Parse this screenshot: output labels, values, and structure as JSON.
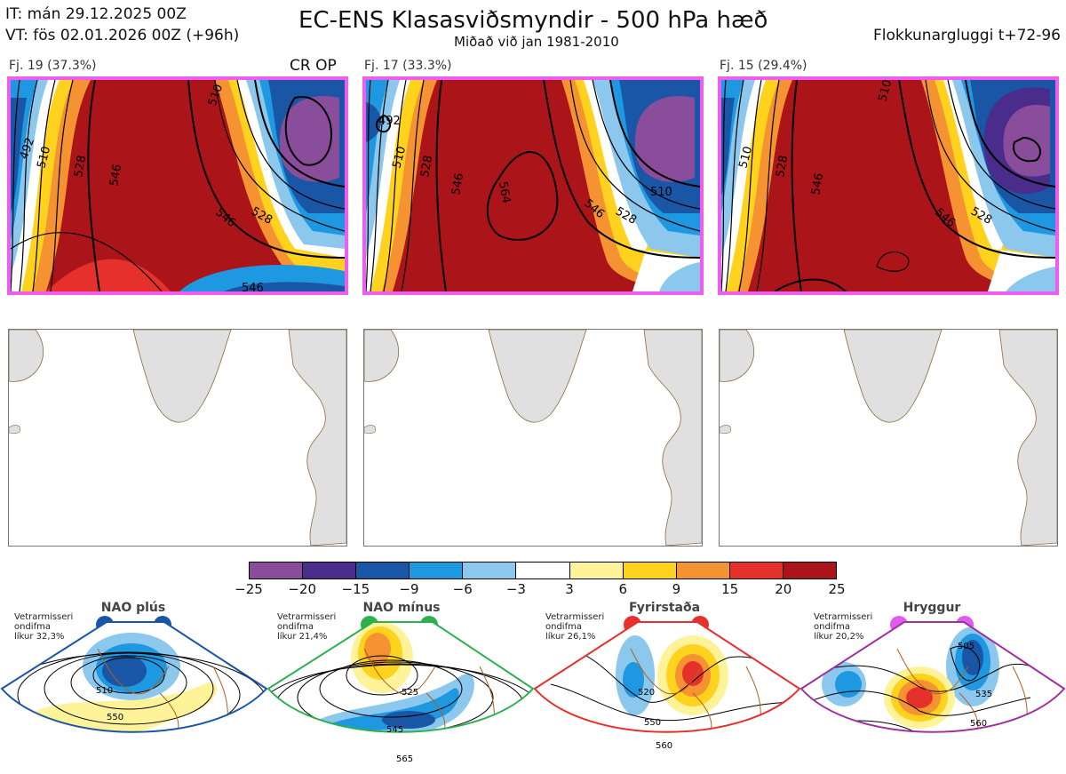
{
  "header": {
    "it_line": "IT: mán 29.12.2025 00Z",
    "vt_line": "VT: fös 02.01.2026 00Z  (+96h)",
    "title": "EC-ENS Klasasviðsmyndir - 500 hPa hæð",
    "subtitle": "Miðað við jan 1981-2010",
    "window": "Flokkunargluggi t+72-96"
  },
  "panels": [
    {
      "label": "Fj. 19 (37.3%)",
      "tag": "CR OP",
      "contours": [
        "492",
        "510",
        "528",
        "546",
        "546",
        "528",
        "510",
        "546"
      ]
    },
    {
      "label": "Fj. 17 (33.3%)",
      "tag": "",
      "contours": [
        "492",
        "510",
        "528",
        "546",
        "564",
        "546",
        "528",
        "510"
      ]
    },
    {
      "label": "Fj. 15 (29.4%)",
      "tag": "",
      "contours": [
        "510",
        "528",
        "546",
        "546",
        "528",
        "510"
      ]
    }
  ],
  "colorbar": {
    "ticks": [
      "−25",
      "−20",
      "−15",
      "−9",
      "−6",
      "−3",
      "3",
      "6",
      "9",
      "15",
      "20",
      "25"
    ],
    "colors": [
      "#8a4d9c",
      "#4a2c8c",
      "#1a56a6",
      "#1e98e0",
      "#8cc8ee",
      "#ffffff",
      "#fff39a",
      "#ffd21e",
      "#f59231",
      "#e5302c",
      "#ab1418"
    ]
  },
  "regimes": [
    {
      "name": "NAO plús",
      "text": [
        "Vetrarmisseri",
        "ondifma",
        "líkur 32,3%"
      ],
      "color": "#1a56a6",
      "contours": [
        "510",
        "550"
      ]
    },
    {
      "name": "NAO mínus",
      "text": [
        "Vetrarmisseri",
        "ondifma",
        "líkur 21,4%"
      ],
      "color": "#2db04e",
      "contours": [
        "525",
        "545",
        "565"
      ]
    },
    {
      "name": "Fyrirstaða",
      "text": [
        "Vetrarmisseri",
        "ondifma",
        "líkur 26,1%"
      ],
      "color": "#e5302c",
      "contours": [
        "520",
        "550",
        "560"
      ]
    },
    {
      "name": "Hryggur",
      "text": [
        "Vetrarmisseri",
        "ondifma",
        "líkur 20,2%"
      ],
      "color": "#e05cef",
      "contours": [
        "505",
        "535",
        "560"
      ]
    }
  ]
}
